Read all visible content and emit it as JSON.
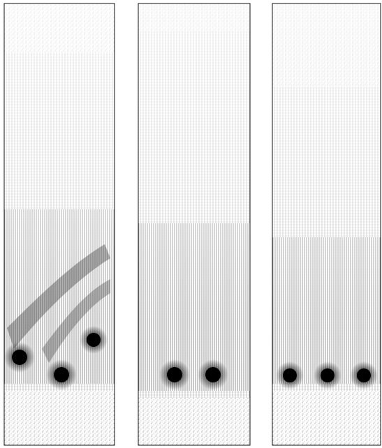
{
  "figure": {
    "description_visible_text": "",
    "colors": {
      "background": "#ffffff",
      "frame": "#111111",
      "vector": "#1a1a1a",
      "core": "#000000"
    },
    "panels": [
      {
        "id": "left",
        "vortex_count": 3
      },
      {
        "id": "middle",
        "vortex_count": 2
      },
      {
        "id": "right",
        "vortex_count": 3
      }
    ]
  }
}
